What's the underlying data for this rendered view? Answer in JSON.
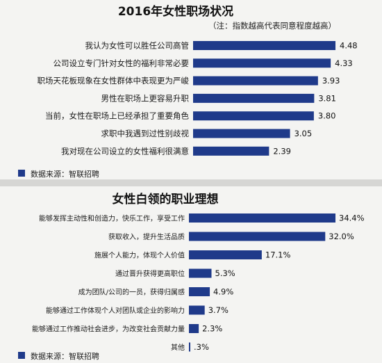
{
  "charts": [
    {
      "title": "2016年女性职场状况",
      "note": "（注：指数越高代表同意程度越高）",
      "source": "数据来源：智联招聘",
      "bar_color": "#1f3a8a",
      "value_decimals": 2,
      "value_suffix": ""
    },
    {
      "title": "女性白领的职业理想",
      "note": "",
      "source": "数据来源：智联招聘",
      "bar_color": "#1f3a8a",
      "value_decimals": 1,
      "value_suffix": "%"
    }
  ],
  "chart_data": [
    {
      "type": "bar",
      "orientation": "horizontal",
      "title": "2016年女性职场状况",
      "categories": [
        "我认为女性可以胜任公司高管",
        "公司设立专门针对女性的福利非常必要",
        "职场天花板现象在女性群体中表现更为严峻",
        "男性在职场上更容易升职",
        "当前，女性在职场上已经承担了重要角色",
        "求职中我遇到过性别歧视",
        "我对现在公司设立的女性福利很满意"
      ],
      "values": [
        4.48,
        4.33,
        3.93,
        3.81,
        3.8,
        3.05,
        2.39
      ],
      "xlim": [
        0,
        4.48
      ],
      "grid": false,
      "legend": "bottom-left"
    },
    {
      "type": "bar",
      "orientation": "horizontal",
      "title": "女性白领的职业理想",
      "categories": [
        "能够发挥主动性和创造力，快乐工作，享受工作",
        "获取收入，提升生活品质",
        "施展个人能力，体现个人价值",
        "通过晋升获得更高职位",
        "成为团队/公司的一员，获得归属感",
        "能够通过工作体现个人对团队或企业的影响力",
        "能够通过工作推动社会进步，为改变社会贡献力量",
        "其他"
      ],
      "values": [
        34.4,
        32.0,
        17.1,
        5.3,
        4.9,
        3.7,
        2.3,
        0.3
      ],
      "value_labels": [
        "34.4%",
        "32.0%",
        "17.1%",
        "5.3%",
        "4.9%",
        "3.7%",
        "2.3%",
        ".3%"
      ],
      "xlim": [
        0,
        34.4
      ],
      "grid": false,
      "legend": "bottom-left"
    }
  ]
}
